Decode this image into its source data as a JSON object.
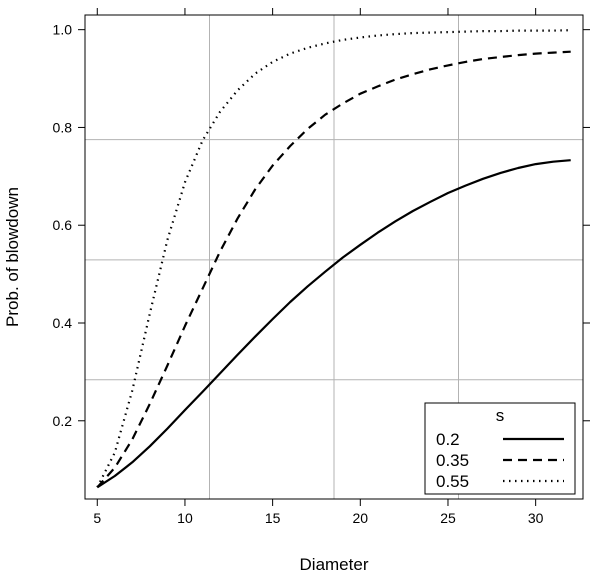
{
  "chart_data": {
    "type": "line",
    "title": "",
    "xlabel": "Diameter",
    "ylabel": "Prob. of blowdown",
    "xlim": [
      4.3,
      32.7
    ],
    "ylim": [
      0.04,
      1.03
    ],
    "x_ticks": [
      5,
      10,
      15,
      20,
      25,
      30
    ],
    "y_ticks": [
      0.2,
      0.4,
      0.6,
      0.8,
      1.0
    ],
    "x_tick_labels": [
      "5",
      "10",
      "15",
      "20",
      "25",
      "30"
    ],
    "y_tick_labels": [
      "0.2",
      "0.4",
      "0.6",
      "0.8",
      "1.0"
    ],
    "gridlines": {
      "x": [
        11.4,
        18.5,
        25.6
      ],
      "y": [
        0.284,
        0.529,
        0.775
      ]
    },
    "grid": true,
    "legend": {
      "title": "s",
      "position": "bottom-right",
      "entries": [
        "0.2",
        "0.35",
        "0.55"
      ]
    },
    "x": [
      5,
      6,
      7,
      8,
      9,
      10,
      11,
      12,
      13,
      14,
      15,
      16,
      17,
      18,
      19,
      20,
      21,
      22,
      23,
      24,
      25,
      26,
      27,
      28,
      29,
      30,
      31,
      32
    ],
    "series": [
      {
        "name": "0.2",
        "style": "solid",
        "values": [
          0.064,
          0.087,
          0.115,
          0.148,
          0.184,
          0.222,
          0.259,
          0.297,
          0.335,
          0.372,
          0.408,
          0.443,
          0.475,
          0.505,
          0.534,
          0.56,
          0.585,
          0.608,
          0.629,
          0.648,
          0.666,
          0.681,
          0.695,
          0.707,
          0.717,
          0.725,
          0.73,
          0.733
        ]
      },
      {
        "name": "0.35",
        "style": "dashed",
        "values": [
          0.064,
          0.104,
          0.162,
          0.235,
          0.313,
          0.394,
          0.47,
          0.546,
          0.614,
          0.673,
          0.722,
          0.762,
          0.797,
          0.826,
          0.849,
          0.869,
          0.884,
          0.898,
          0.909,
          0.919,
          0.927,
          0.934,
          0.94,
          0.944,
          0.948,
          0.951,
          0.953,
          0.955
        ]
      },
      {
        "name": "0.55",
        "style": "dotted",
        "values": [
          0.064,
          0.135,
          0.262,
          0.42,
          0.57,
          0.688,
          0.773,
          0.832,
          0.876,
          0.91,
          0.934,
          0.951,
          0.963,
          0.972,
          0.979,
          0.984,
          0.988,
          0.991,
          0.993,
          0.994,
          0.995,
          0.996,
          0.997,
          0.997,
          0.998,
          0.998,
          0.998,
          0.999
        ]
      }
    ]
  }
}
